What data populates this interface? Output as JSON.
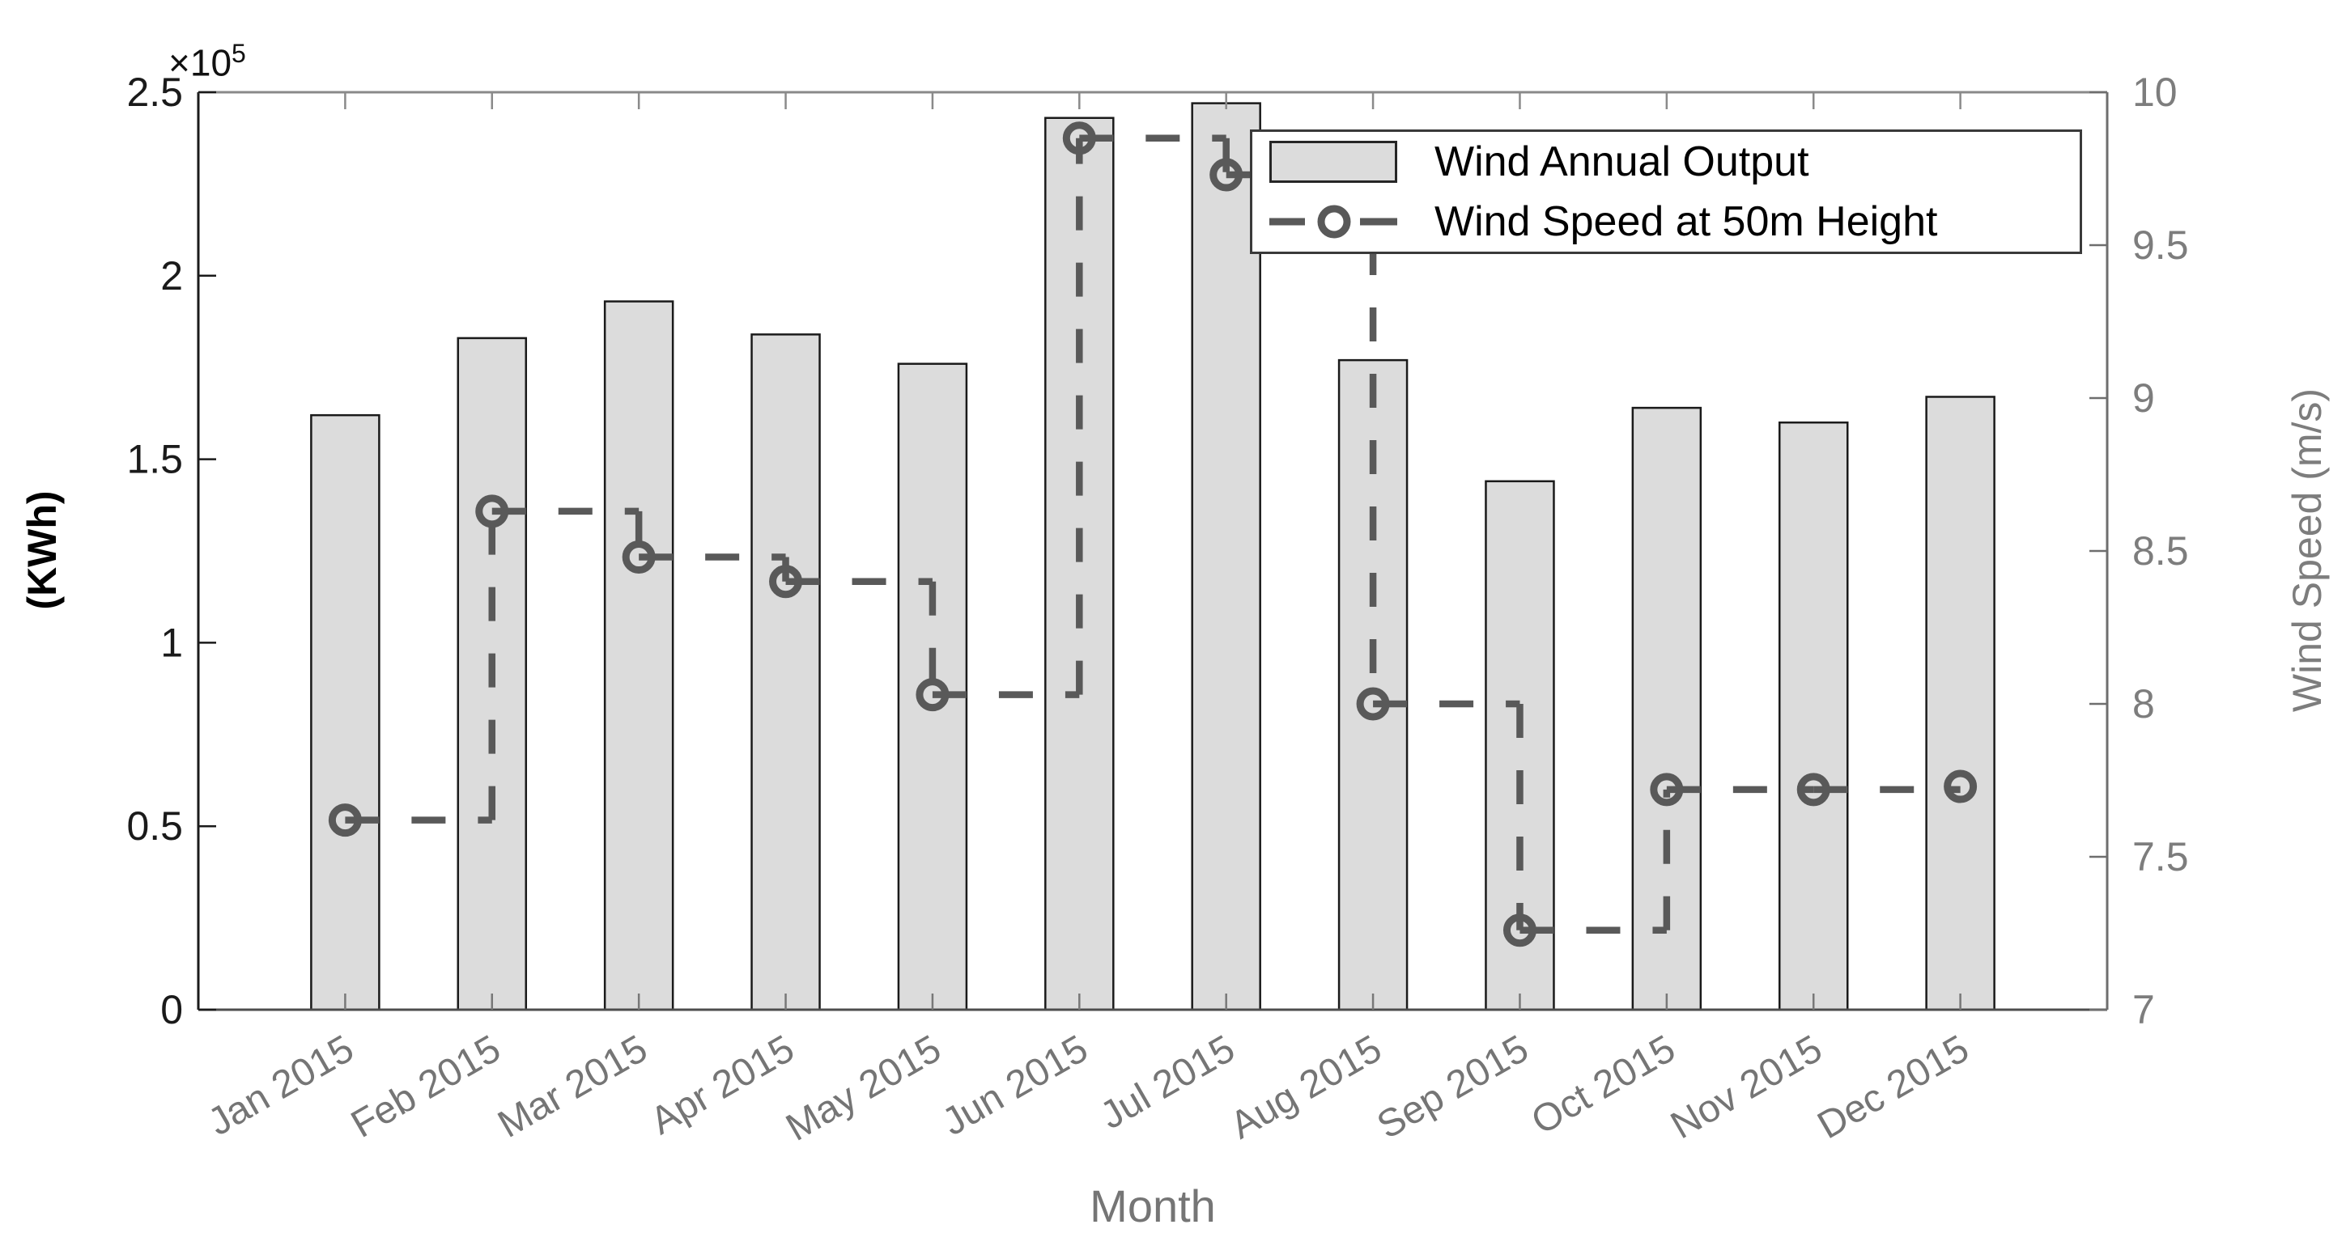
{
  "chart_data": {
    "type": "bar",
    "title": "",
    "categories": [
      "Jan 2015",
      "Feb 2015",
      "Mar 2015",
      "Apr 2015",
      "May 2015",
      "Jun 2015",
      "Jul 2015",
      "Aug 2015",
      "Sep 2015",
      "Oct 2015",
      "Nov 2015",
      "Dec 2015"
    ],
    "series": [
      {
        "name": "Wind Annual Output",
        "type": "bar",
        "yaxis": "left",
        "units": "KWh",
        "values": [
          162000,
          183000,
          193000,
          184000,
          176000,
          243000,
          247000,
          177000,
          144000,
          164000,
          160000,
          167000
        ]
      },
      {
        "name": "Wind Speed at 50m Height",
        "type": "stairs-dashed-line",
        "yaxis": "right",
        "units": "m/s",
        "marker": "circle",
        "values": [
          7.62,
          8.63,
          8.48,
          8.4,
          8.03,
          9.85,
          9.73,
          8.0,
          7.26,
          7.72,
          7.72,
          7.73
        ]
      }
    ],
    "xlabel": "Month",
    "ylabel_left": "(KWh)",
    "ylabel_right": "Wind Speed (m/s)",
    "ylim_left": [
      0,
      250000
    ],
    "ylim_right": [
      7,
      10
    ],
    "left_ticks": [
      0,
      50000,
      100000,
      150000,
      200000,
      250000
    ],
    "left_tick_labels": [
      "0",
      "0.5",
      "1",
      "1.5",
      "2",
      "2.5"
    ],
    "right_ticks": [
      7,
      7.5,
      8,
      8.5,
      9,
      9.5,
      10
    ],
    "right_tick_labels": [
      "7",
      "7.5",
      "8",
      "8.5",
      "9",
      "9.5",
      "10"
    ],
    "exponent": {
      "multiplier": "×10",
      "power": "5"
    },
    "legend": {
      "position": "top-right",
      "items": [
        "Wind Annual Output",
        "Wind Speed at 50m Height"
      ]
    },
    "grid": false,
    "x_tick_rotation_deg": -30,
    "colors": {
      "bar_fill": "#dcdcdc",
      "bar_edge": "#1a1a1a",
      "line": "#595959",
      "left_axis": "#1a1a1a",
      "bottom_axis": "#4d4d4d",
      "top_axis": "#8a8a8a",
      "right_axis": "#6e6e6e",
      "left_text": "#1a1a1a",
      "right_text": "#7d7d7d",
      "x_text": "#757575"
    }
  }
}
